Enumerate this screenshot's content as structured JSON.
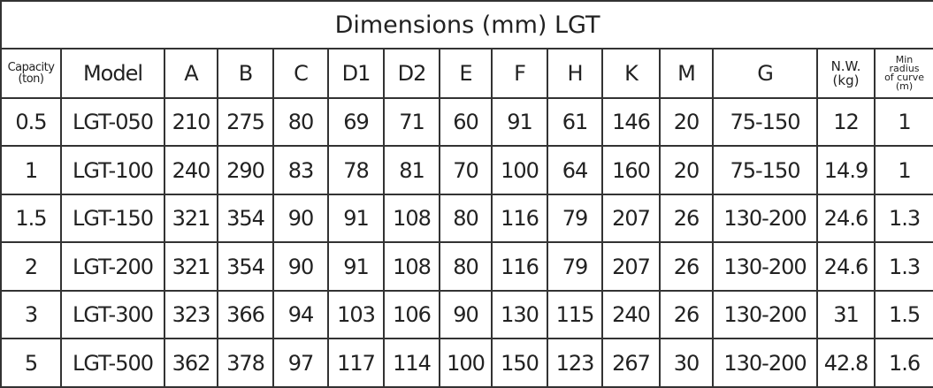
{
  "header": {
    "title": "Dimensions (mm) LGT"
  },
  "table": {
    "columns": [
      "Capacity\n(ton)",
      "Model",
      "A",
      "B",
      "C",
      "D1",
      "D2",
      "E",
      "F",
      "H",
      "K",
      "M",
      "G",
      "N.W.\n(kg)",
      "Min\nradius\nof curve\n(m)"
    ],
    "rows": [
      [
        "0.5",
        "LGT-050",
        "210",
        "275",
        "80",
        "69",
        "71",
        "60",
        "91",
        "61",
        "146",
        "20",
        "75-150",
        "12",
        "1"
      ],
      [
        "1",
        "LGT-100",
        "240",
        "290",
        "83",
        "78",
        "81",
        "70",
        "100",
        "64",
        "160",
        "20",
        "75-150",
        "14.9",
        "1"
      ],
      [
        "1.5",
        "LGT-150",
        "321",
        "354",
        "90",
        "91",
        "108",
        "80",
        "116",
        "79",
        "207",
        "26",
        "130-200",
        "24.6",
        "1.3"
      ],
      [
        "2",
        "LGT-200",
        "321",
        "354",
        "90",
        "91",
        "108",
        "80",
        "116",
        "79",
        "207",
        "26",
        "130-200",
        "24.6",
        "1.3"
      ],
      [
        "3",
        "LGT-300",
        "323",
        "366",
        "94",
        "103",
        "106",
        "90",
        "130",
        "115",
        "240",
        "26",
        "130-200",
        "31",
        "1.5"
      ],
      [
        "5",
        "LGT-500",
        "362",
        "378",
        "97",
        "117",
        "114",
        "100",
        "150",
        "123",
        "267",
        "30",
        "130-200",
        "42.8",
        "1.6"
      ]
    ]
  }
}
